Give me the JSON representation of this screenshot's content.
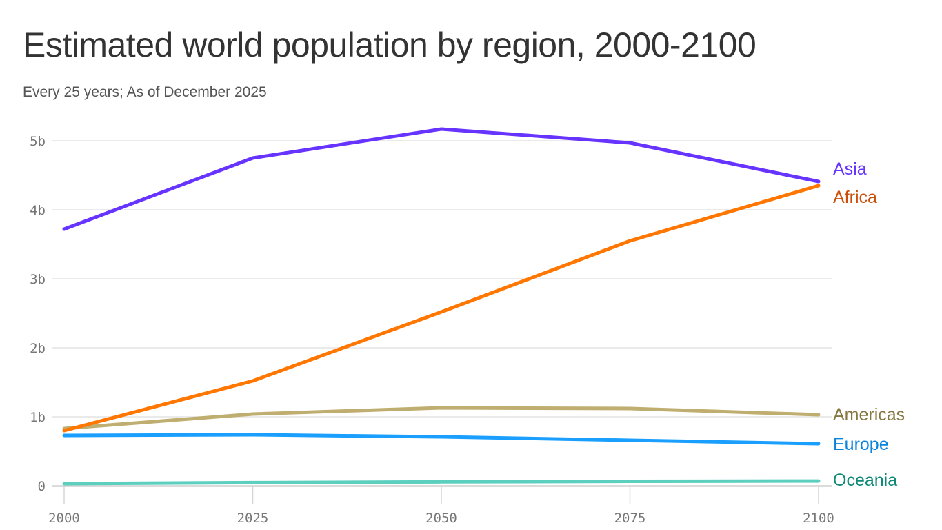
{
  "chart_data": {
    "type": "line",
    "title": "Estimated world population by region, 2000-2100",
    "subtitle": "Every 25 years; As of December 2025",
    "x": [
      2000,
      2025,
      2050,
      2075,
      2100
    ],
    "x_tick_labels": [
      "2000",
      "2025",
      "2050",
      "2075",
      "2100"
    ],
    "y_ticks": [
      0,
      1,
      2,
      3,
      4,
      5
    ],
    "y_tick_labels": [
      "0",
      "1b",
      "2b",
      "3b",
      "4b",
      "5b"
    ],
    "ylim": [
      0,
      5.2
    ],
    "xlim": [
      2000,
      2100
    ],
    "y_unit": "billions",
    "grid": "horizontal",
    "legend": "direct labels at right end of lines",
    "series": [
      {
        "name": "Asia",
        "values": [
          3.72,
          4.75,
          5.17,
          4.97,
          4.41
        ],
        "color": "#6633ff",
        "label_color": "#6633ff"
      },
      {
        "name": "Africa",
        "values": [
          0.8,
          1.52,
          2.52,
          3.55,
          4.35
        ],
        "color": "#ff7700",
        "label_color": "#c94f0a"
      },
      {
        "name": "Americas",
        "values": [
          0.83,
          1.04,
          1.13,
          1.12,
          1.03
        ],
        "color": "#bfae6f",
        "label_color": "#857740"
      },
      {
        "name": "Europe",
        "values": [
          0.73,
          0.74,
          0.71,
          0.66,
          0.61
        ],
        "color": "#1a9fff",
        "label_color": "#0a84dc"
      },
      {
        "name": "Oceania",
        "values": [
          0.03,
          0.046,
          0.057,
          0.065,
          0.069
        ],
        "color": "#5ccfbf",
        "label_color": "#0e8a76"
      }
    ]
  }
}
